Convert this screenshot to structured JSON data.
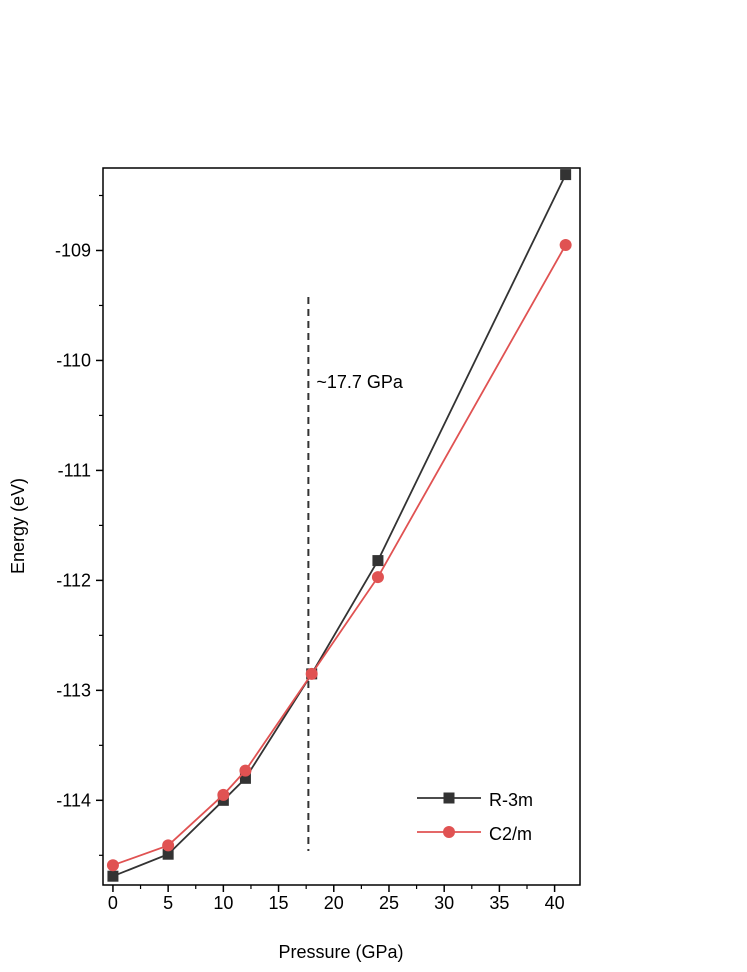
{
  "chart_data": {
    "type": "line",
    "x_label": "Pressure (GPa)",
    "y_label": "Energy (eV)",
    "xlim": [
      -0.9,
      42.3
    ],
    "ylim": [
      -114.77,
      -108.25
    ],
    "xticks": [
      0,
      5,
      10,
      15,
      20,
      25,
      30,
      35,
      40
    ],
    "yticks": [
      -114,
      -113,
      -112,
      -111,
      -110,
      -109
    ],
    "xticks_minor": [
      2.5,
      7.5,
      12.5,
      17.5,
      22.5,
      27.5,
      32.5,
      37.5
    ],
    "yticks_minor": [
      -114.5,
      -113.5,
      -112.5,
      -111.5,
      -110.5,
      -109.5,
      -108.5
    ],
    "legend": "lower right",
    "vline": 17.7,
    "annotation": "~17.7 GPa",
    "series": [
      {
        "name": "R-3m",
        "color": "#333333",
        "marker": "square",
        "x": [
          0,
          5,
          10,
          12,
          18,
          24,
          41
        ],
        "values": [
          -114.69,
          -114.49,
          -114.0,
          -113.8,
          -112.85,
          -111.82,
          -108.31
        ]
      },
      {
        "name": "C2/m",
        "color": "#e05252",
        "marker": "circle",
        "x": [
          0,
          5,
          10,
          12,
          18,
          24,
          41
        ],
        "values": [
          -114.59,
          -114.41,
          -113.95,
          -113.73,
          -112.85,
          -111.97,
          -108.95
        ]
      }
    ]
  }
}
